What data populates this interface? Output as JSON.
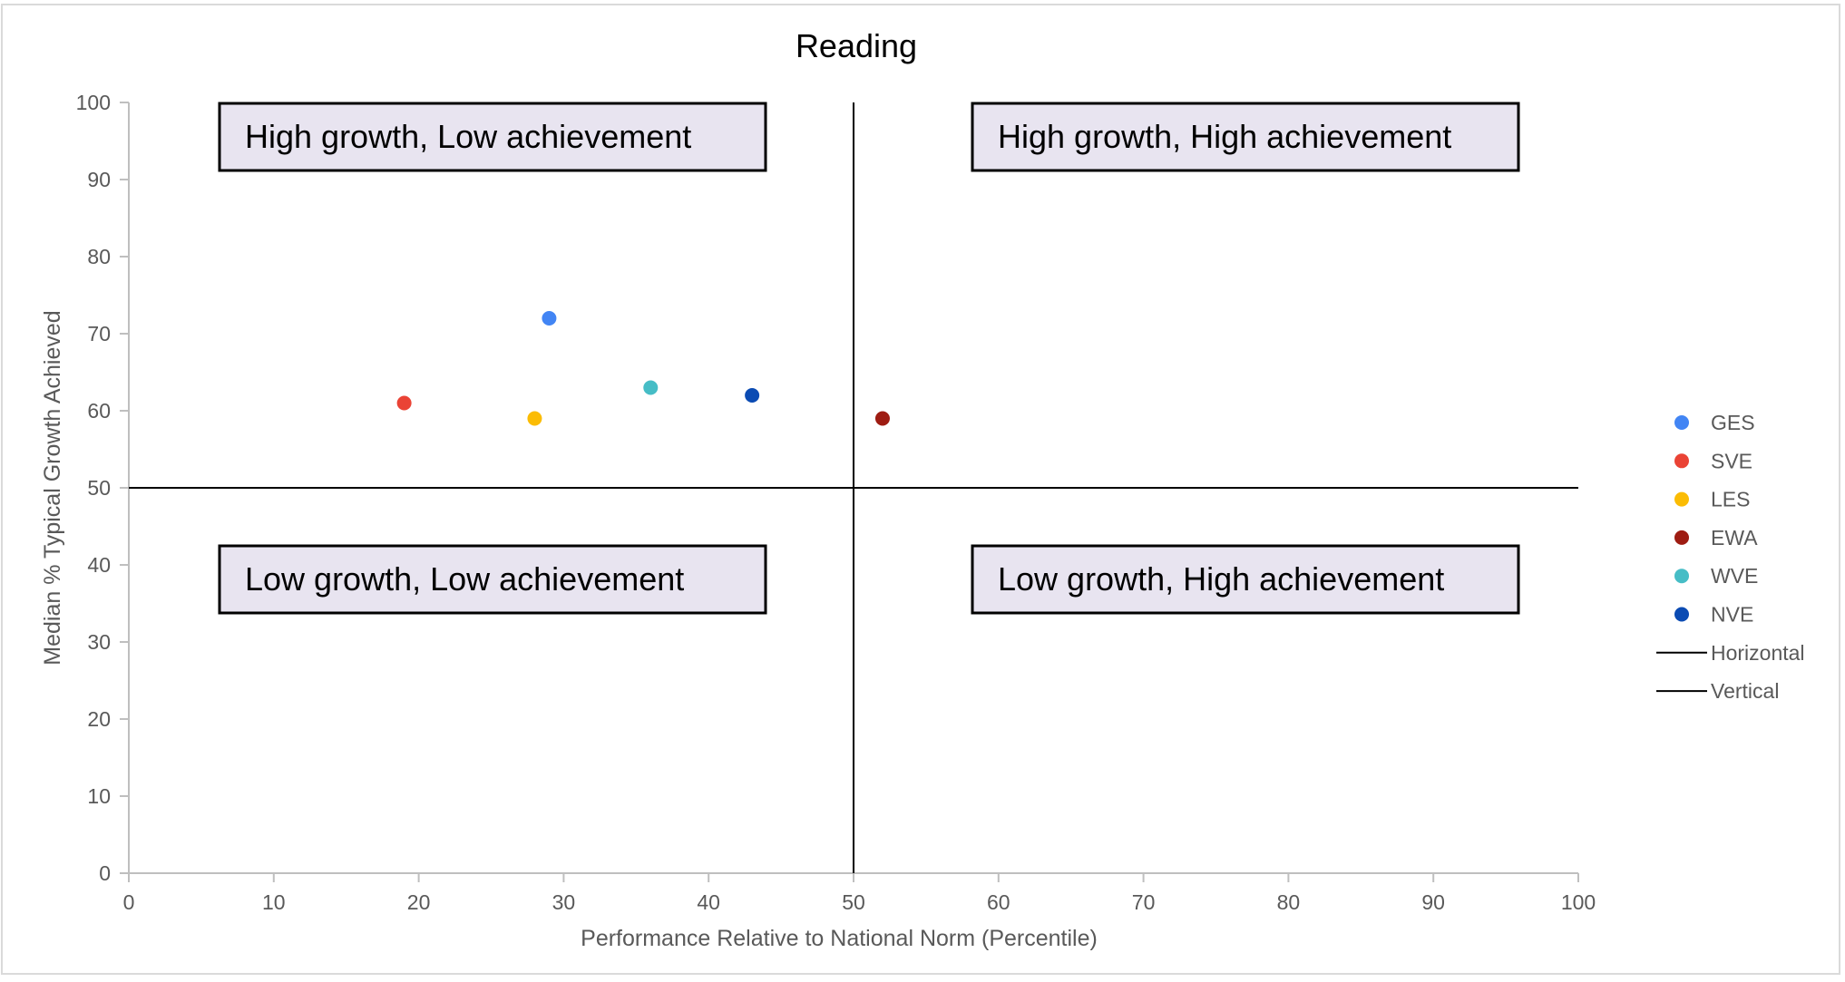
{
  "chart_data": {
    "type": "scatter",
    "title": "Reading",
    "xlabel": "Performance Relative to National Norm  (Percentile)",
    "ylabel": "Median % Typical Growth Achieved",
    "xlim": [
      0,
      100
    ],
    "ylim": [
      0,
      100
    ],
    "xticks": [
      0,
      10,
      20,
      30,
      40,
      50,
      60,
      70,
      80,
      90,
      100
    ],
    "yticks": [
      0,
      10,
      20,
      30,
      40,
      50,
      60,
      70,
      80,
      90,
      100
    ],
    "grid": false,
    "legend_position": "right",
    "series": [
      {
        "name": "GES",
        "color": "#4285f4",
        "points": [
          {
            "x": 29,
            "y": 72
          }
        ]
      },
      {
        "name": "SVE",
        "color": "#ea4335",
        "points": [
          {
            "x": 19,
            "y": 61
          }
        ]
      },
      {
        "name": "LES",
        "color": "#fbbc04",
        "points": [
          {
            "x": 28,
            "y": 59
          }
        ]
      },
      {
        "name": "EWA",
        "color": "#9e1c12",
        "points": [
          {
            "x": 52,
            "y": 59
          }
        ]
      },
      {
        "name": "WVE",
        "color": "#46bdc6",
        "points": [
          {
            "x": 36,
            "y": 63
          }
        ]
      },
      {
        "name": "NVE",
        "color": "#0b4bb3",
        "points": [
          {
            "x": 43,
            "y": 62
          }
        ]
      }
    ],
    "reference_lines": [
      {
        "name": "Horizontal",
        "orientation": "horizontal",
        "value": 50,
        "color": "#000000"
      },
      {
        "name": "Vertical",
        "orientation": "vertical",
        "value": 50,
        "color": "#000000"
      }
    ],
    "annotations": [
      {
        "text": "High growth, Low achievement",
        "quadrant": "top-left"
      },
      {
        "text": "High growth, High achievement",
        "quadrant": "top-right"
      },
      {
        "text": "Low growth, Low achievement",
        "quadrant": "bottom-left"
      },
      {
        "text": "Low growth, High achievement",
        "quadrant": "bottom-right"
      }
    ],
    "annotation_fill": "#e8e4f0"
  }
}
